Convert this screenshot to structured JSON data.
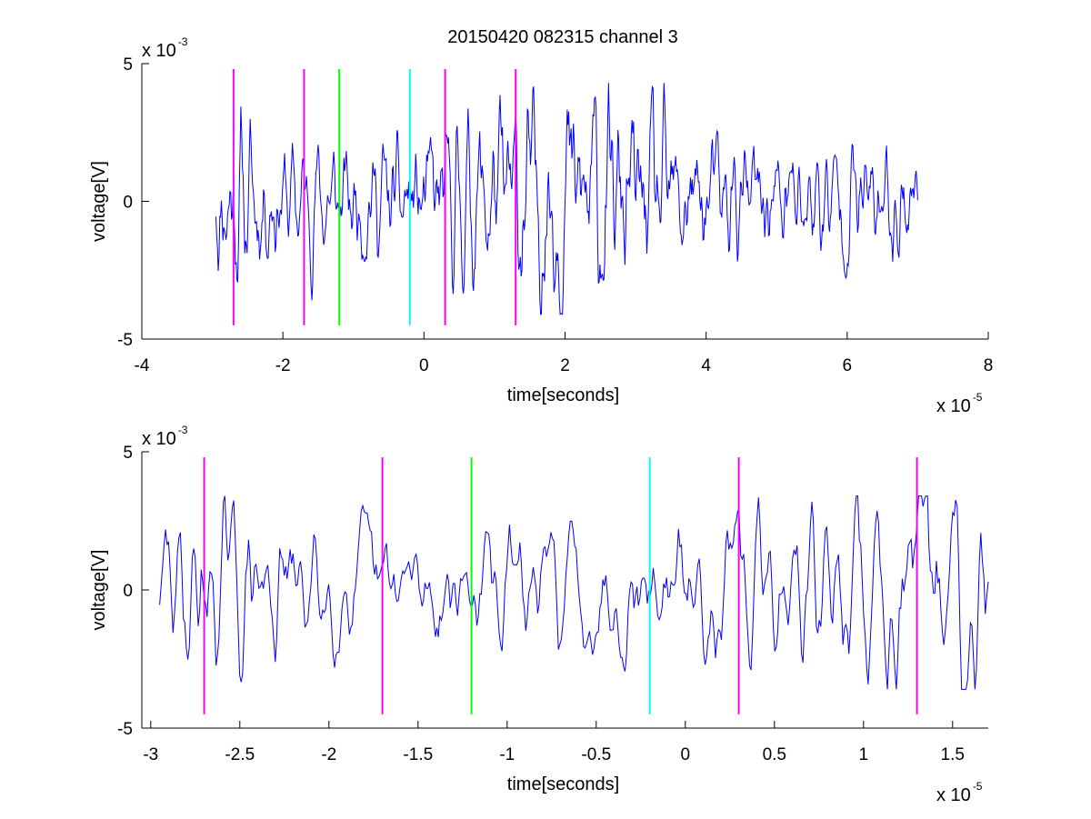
{
  "chart_data": [
    {
      "type": "line",
      "title": "20150420 082315 channel 3",
      "xlabel": "time[seconds]",
      "ylabel": "voltage[V]",
      "x_exponent": {
        "base": "x 10",
        "power": "-5"
      },
      "y_exponent": {
        "base": "x 10",
        "power": "-3"
      },
      "xlim": [
        -4,
        8
      ],
      "ylim": [
        -5,
        5
      ],
      "x_ticks": [
        -4,
        -2,
        0,
        2,
        4,
        6,
        8
      ],
      "x_tick_labels": [
        "-4",
        "-2",
        "0",
        "2",
        "4",
        "6",
        "8"
      ],
      "y_ticks": [
        -5,
        0,
        5
      ],
      "y_tick_labels": [
        "-5",
        "0",
        "5"
      ],
      "grid": false,
      "series": [
        {
          "color": "#0000ff",
          "x_range": [
            -2.95,
            7.0
          ],
          "y_envelope": [
            -4.1,
            4.3
          ],
          "seed": 11,
          "n_points": 900
        }
      ],
      "markers": [
        {
          "x": -2.7,
          "color": "#ff00ff",
          "y_range": [
            -4.5,
            4.8
          ]
        },
        {
          "x": -1.7,
          "color": "#ff00ff",
          "y_range": [
            -4.5,
            4.8
          ]
        },
        {
          "x": -1.2,
          "color": "#00ff00",
          "y_range": [
            -4.5,
            4.8
          ]
        },
        {
          "x": -0.2,
          "color": "#00ffff",
          "y_range": [
            -4.5,
            4.8
          ]
        },
        {
          "x": 0.3,
          "color": "#ff00ff",
          "y_range": [
            -4.5,
            4.8
          ]
        },
        {
          "x": 1.3,
          "color": "#ff00ff",
          "y_range": [
            -4.5,
            4.8
          ]
        }
      ]
    },
    {
      "type": "line",
      "title": "",
      "xlabel": "time[seconds]",
      "ylabel": "voltage[V]",
      "x_exponent": {
        "base": "x 10",
        "power": "-5"
      },
      "y_exponent": {
        "base": "x 10",
        "power": "-3"
      },
      "xlim": [
        -3.05,
        1.7
      ],
      "ylim": [
        -5,
        5
      ],
      "x_ticks": [
        -3,
        -2.5,
        -2,
        -1.5,
        -1,
        -0.5,
        0,
        0.5,
        1,
        1.5
      ],
      "x_tick_labels": [
        "-3",
        "-2.5",
        "-2",
        "-1.5",
        "-1",
        "-0.5",
        "0",
        "0.5",
        "1",
        "1.5"
      ],
      "y_ticks": [
        -5,
        0,
        5
      ],
      "y_tick_labels": [
        "-5",
        "0",
        "5"
      ],
      "grid": false,
      "series": [
        {
          "color": "#0000ff",
          "x_range": [
            -2.95,
            1.7
          ],
          "y_envelope": [
            -3.6,
            3.4
          ],
          "seed": 29,
          "n_points": 560
        }
      ],
      "markers": [
        {
          "x": -2.7,
          "color": "#ff00ff",
          "y_range": [
            -4.5,
            4.8
          ]
        },
        {
          "x": -1.7,
          "color": "#ff00ff",
          "y_range": [
            -4.5,
            4.8
          ]
        },
        {
          "x": -1.2,
          "color": "#00ff00",
          "y_range": [
            -4.5,
            4.8
          ]
        },
        {
          "x": -0.2,
          "color": "#00ffff",
          "y_range": [
            -4.5,
            4.8
          ]
        },
        {
          "x": 0.3,
          "color": "#ff00ff",
          "y_range": [
            -4.5,
            4.8
          ]
        },
        {
          "x": 1.3,
          "color": "#ff00ff",
          "y_range": [
            -4.5,
            4.8
          ]
        }
      ]
    }
  ]
}
